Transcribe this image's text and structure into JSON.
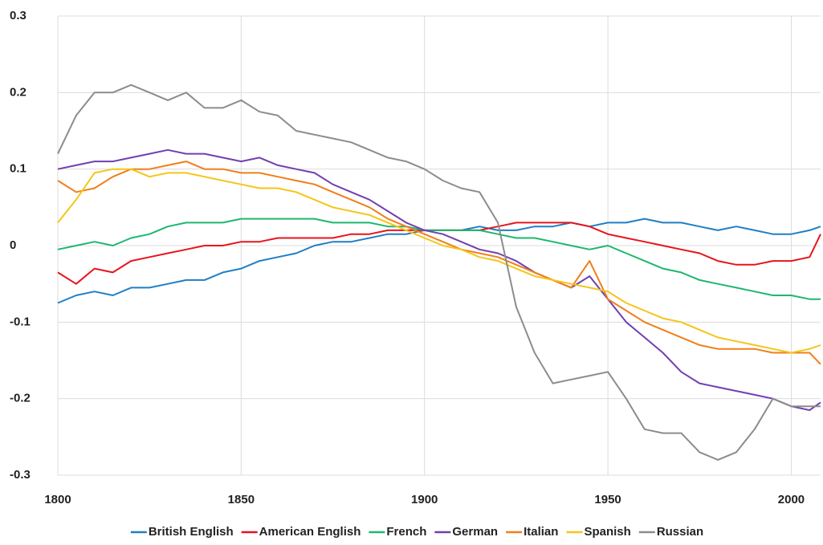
{
  "chart_data": {
    "type": "line",
    "x": [
      1800,
      1805,
      1810,
      1815,
      1820,
      1825,
      1830,
      1835,
      1840,
      1845,
      1850,
      1855,
      1860,
      1865,
      1870,
      1875,
      1880,
      1885,
      1890,
      1895,
      1900,
      1905,
      1910,
      1915,
      1920,
      1925,
      1930,
      1935,
      1940,
      1945,
      1950,
      1955,
      1960,
      1965,
      1970,
      1975,
      1980,
      1985,
      1990,
      1995,
      2000,
      2005,
      2008
    ],
    "series": [
      {
        "name": "British English",
        "color": "#1f7fc4",
        "values": [
          -0.075,
          -0.065,
          -0.06,
          -0.065,
          -0.055,
          -0.055,
          -0.05,
          -0.045,
          -0.045,
          -0.035,
          -0.03,
          -0.02,
          -0.015,
          -0.01,
          0.0,
          0.005,
          0.005,
          0.01,
          0.015,
          0.015,
          0.02,
          0.02,
          0.02,
          0.025,
          0.02,
          0.02,
          0.025,
          0.025,
          0.03,
          0.025,
          0.03,
          0.03,
          0.035,
          0.03,
          0.03,
          0.025,
          0.02,
          0.025,
          0.02,
          0.015,
          0.015,
          0.02,
          0.025
        ]
      },
      {
        "name": "American English",
        "color": "#e8141c",
        "values": [
          -0.035,
          -0.05,
          -0.03,
          -0.035,
          -0.02,
          -0.015,
          -0.01,
          -0.005,
          0.0,
          0.0,
          0.005,
          0.005,
          0.01,
          0.01,
          0.01,
          0.01,
          0.015,
          0.015,
          0.02,
          0.02,
          0.02,
          0.02,
          0.02,
          0.02,
          0.025,
          0.03,
          0.03,
          0.03,
          0.03,
          0.025,
          0.015,
          0.01,
          0.005,
          0.0,
          -0.005,
          -0.01,
          -0.02,
          -0.025,
          -0.025,
          -0.02,
          -0.02,
          -0.015,
          0.015
        ]
      },
      {
        "name": "French",
        "color": "#1db86e",
        "values": [
          -0.005,
          0.0,
          0.005,
          0.0,
          0.01,
          0.015,
          0.025,
          0.03,
          0.03,
          0.03,
          0.035,
          0.035,
          0.035,
          0.035,
          0.035,
          0.03,
          0.03,
          0.03,
          0.025,
          0.025,
          0.02,
          0.02,
          0.02,
          0.02,
          0.015,
          0.01,
          0.01,
          0.005,
          0.0,
          -0.005,
          0.0,
          -0.01,
          -0.02,
          -0.03,
          -0.035,
          -0.045,
          -0.05,
          -0.055,
          -0.06,
          -0.065,
          -0.065,
          -0.07,
          -0.07
        ]
      },
      {
        "name": "German",
        "color": "#7040b0",
        "values": [
          0.1,
          0.105,
          0.11,
          0.11,
          0.115,
          0.12,
          0.125,
          0.12,
          0.12,
          0.115,
          0.11,
          0.115,
          0.105,
          0.1,
          0.095,
          0.08,
          0.07,
          0.06,
          0.045,
          0.03,
          0.02,
          0.015,
          0.005,
          -0.005,
          -0.01,
          -0.02,
          -0.035,
          -0.045,
          -0.055,
          -0.04,
          -0.07,
          -0.1,
          -0.12,
          -0.14,
          -0.165,
          -0.18,
          -0.185,
          -0.19,
          -0.195,
          -0.2,
          -0.21,
          -0.215,
          -0.205
        ]
      },
      {
        "name": "Italian",
        "color": "#f07f1a",
        "values": [
          0.085,
          0.07,
          0.075,
          0.09,
          0.1,
          0.1,
          0.105,
          0.11,
          0.1,
          0.1,
          0.095,
          0.095,
          0.09,
          0.085,
          0.08,
          0.07,
          0.06,
          0.05,
          0.035,
          0.025,
          0.015,
          0.005,
          -0.005,
          -0.01,
          -0.015,
          -0.025,
          -0.035,
          -0.045,
          -0.055,
          -0.02,
          -0.07,
          -0.085,
          -0.1,
          -0.11,
          -0.12,
          -0.13,
          -0.135,
          -0.135,
          -0.135,
          -0.14,
          -0.14,
          -0.14,
          -0.155
        ]
      },
      {
        "name": "Spanish",
        "color": "#f5c518",
        "values": [
          0.03,
          0.06,
          0.095,
          0.1,
          0.1,
          0.09,
          0.095,
          0.095,
          0.09,
          0.085,
          0.08,
          0.075,
          0.075,
          0.07,
          0.06,
          0.05,
          0.045,
          0.04,
          0.03,
          0.02,
          0.01,
          0.0,
          -0.005,
          -0.015,
          -0.02,
          -0.03,
          -0.04,
          -0.045,
          -0.05,
          -0.055,
          -0.06,
          -0.075,
          -0.085,
          -0.095,
          -0.1,
          -0.11,
          -0.12,
          -0.125,
          -0.13,
          -0.135,
          -0.14,
          -0.135,
          -0.13
        ]
      },
      {
        "name": "Russian",
        "color": "#8c8c8c",
        "values": [
          0.12,
          0.17,
          0.2,
          0.2,
          0.21,
          0.2,
          0.19,
          0.2,
          0.18,
          0.18,
          0.19,
          0.175,
          0.17,
          0.15,
          0.145,
          0.14,
          0.135,
          0.125,
          0.115,
          0.11,
          0.1,
          0.085,
          0.075,
          0.07,
          0.03,
          -0.08,
          -0.14,
          -0.18,
          -0.175,
          -0.17,
          -0.165,
          -0.2,
          -0.24,
          -0.245,
          -0.245,
          -0.27,
          -0.28,
          -0.27,
          -0.24,
          -0.2,
          -0.21,
          -0.21,
          -0.21
        ]
      }
    ],
    "xlim": [
      1800,
      2008
    ],
    "xticks": [
      1800,
      1850,
      1900,
      1950,
      2000
    ],
    "ylim": [
      -0.3,
      0.3
    ],
    "yticks": [
      -0.3,
      -0.2,
      -0.1,
      0,
      0.1,
      0.2,
      0.3
    ],
    "grid": true,
    "legend": "bottom"
  }
}
